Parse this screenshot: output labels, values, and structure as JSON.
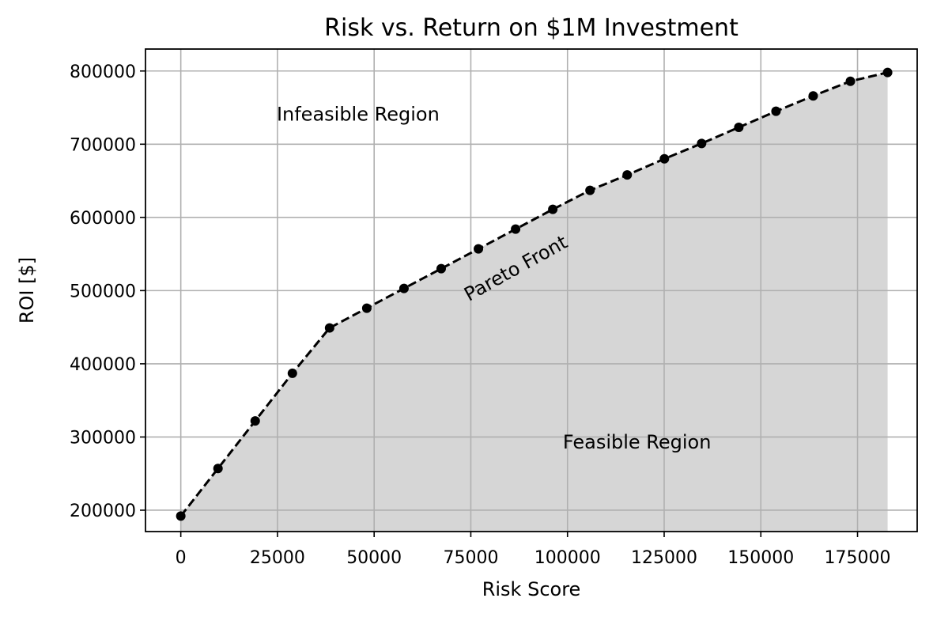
{
  "chart_data": {
    "type": "line",
    "title": "Risk vs. Return on $1M Investment",
    "xlabel": "Risk Score",
    "ylabel": "ROI [$]",
    "xlim": [
      -9130,
      190430
    ],
    "ylim": [
      170800,
      830000
    ],
    "xticks": [
      0,
      25000,
      50000,
      75000,
      100000,
      125000,
      150000,
      175000
    ],
    "yticks": [
      200000,
      300000,
      400000,
      500000,
      600000,
      700000,
      800000
    ],
    "grid": true,
    "series": [
      {
        "name": "",
        "style": "dashed-line-with-markers",
        "color": "#000000",
        "fill_below": true,
        "fill_color": "#d6d6d6",
        "x": [
          0,
          9620,
          19240,
          28860,
          38480,
          48100,
          57720,
          67340,
          76960,
          86580,
          96200,
          105820,
          115440,
          125060,
          134680,
          144300,
          153920,
          163540,
          173160,
          182780
        ],
        "y": [
          192000,
          257000,
          322000,
          387000,
          449000,
          476000,
          503000,
          530000,
          557000,
          584000,
          611000,
          637000,
          658000,
          680000,
          701000,
          723000,
          745000,
          766000,
          786000,
          798000
        ]
      }
    ],
    "annotations": [
      {
        "text": "Infeasible Region",
        "x": 24800,
        "y": 732000,
        "rotation": 0
      },
      {
        "text": "Pareto Front",
        "x": 74500,
        "y": 485000,
        "rotation": -29
      },
      {
        "text": "Feasible Region",
        "x": 98800,
        "y": 284000,
        "rotation": 0
      }
    ]
  }
}
